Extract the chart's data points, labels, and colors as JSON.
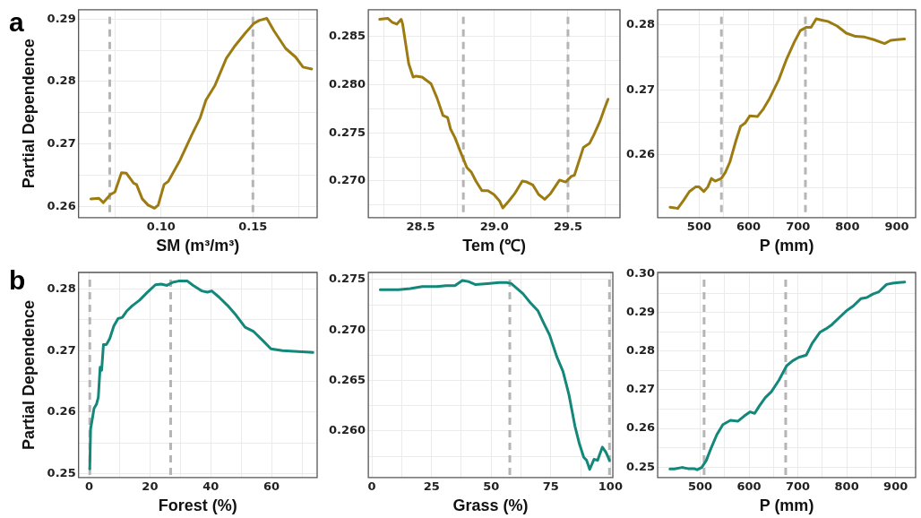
{
  "chart_data": [
    {
      "type": "line",
      "xlabel": "SM (m³/m³)",
      "ylabel": "Partial Dependence",
      "annotations": [
        "a"
      ],
      "color": "#9c7c12",
      "marker": "none",
      "grid": true,
      "x": [
        0.0617,
        0.0661,
        0.0685,
        0.0724,
        0.0748,
        0.0784,
        0.0811,
        0.085,
        0.0866,
        0.0897,
        0.0929,
        0.0964,
        0.0984,
        0.1016,
        0.1039,
        0.1103,
        0.1166,
        0.1213,
        0.1244,
        0.1292,
        0.1355,
        0.1402,
        0.1457,
        0.1505,
        0.1536,
        0.1576,
        0.1615,
        0.1678,
        0.1733,
        0.1773,
        0.182
      ],
      "values": [
        0.2612,
        0.2613,
        0.2606,
        0.2619,
        0.2623,
        0.2654,
        0.2653,
        0.2637,
        0.2635,
        0.2612,
        0.2602,
        0.2597,
        0.2602,
        0.2635,
        0.264,
        0.2674,
        0.2714,
        0.2742,
        0.277,
        0.2793,
        0.2837,
        0.2857,
        0.2877,
        0.2893,
        0.2898,
        0.2901,
        0.2881,
        0.2853,
        0.2839,
        0.2823,
        0.282
      ],
      "xlim": [
        0.055,
        0.185
      ],
      "ylim": [
        0.2582,
        0.2915
      ],
      "xticks": [
        {
          "value": 0.075,
          "label": null
        },
        {
          "value": 0.1,
          "label": "0.10"
        },
        {
          "value": 0.125,
          "label": null
        },
        0.15,
        {
          "value": 0.175,
          "label": null
        }
      ],
      "yticks": [
        0.26,
        {
          "value": 0.265,
          "label": null
        },
        {
          "value": 0.27,
          "label": "0.27"
        },
        {
          "value": 0.275,
          "label": null
        },
        0.28,
        {
          "value": 0.285,
          "label": null
        },
        0.29
      ],
      "ref_lines": [
        {
          "axis": "x",
          "value": 0.072,
          "color": "#b5b5b5",
          "line_style": "dashed"
        },
        {
          "axis": "x",
          "value": 0.15,
          "color": "#b5b5b5",
          "line_style": "dashed"
        }
      ]
    },
    {
      "type": "line",
      "xlabel": "Tem (℃)",
      "color": "#9c7c12",
      "marker": "none",
      "grid": true,
      "x": [
        28.222,
        28.277,
        28.307,
        28.338,
        28.368,
        28.378,
        28.399,
        28.419,
        28.449,
        28.47,
        28.51,
        28.571,
        28.612,
        28.652,
        28.683,
        28.703,
        28.733,
        28.774,
        28.814,
        28.845,
        28.875,
        28.916,
        28.956,
        28.997,
        29.037,
        29.058,
        29.098,
        29.139,
        29.19,
        29.22,
        29.261,
        29.301,
        29.342,
        29.382,
        29.443,
        29.484,
        29.524,
        29.544,
        29.605,
        29.646,
        29.676,
        29.717,
        29.747,
        29.772
      ],
      "values": [
        0.2868,
        0.2869,
        0.2865,
        0.2863,
        0.2868,
        0.2863,
        0.2842,
        0.2822,
        0.2808,
        0.2809,
        0.2808,
        0.2801,
        0.2786,
        0.2768,
        0.2766,
        0.2754,
        0.2745,
        0.2729,
        0.2714,
        0.2709,
        0.27,
        0.269,
        0.269,
        0.2686,
        0.2679,
        0.2672,
        0.2679,
        0.2687,
        0.27,
        0.2699,
        0.2696,
        0.2686,
        0.2681,
        0.2687,
        0.2701,
        0.2699,
        0.2705,
        0.2706,
        0.2735,
        0.2739,
        0.2748,
        0.2762,
        0.2775,
        0.2785
      ],
      "xlim": [
        28.145,
        29.853
      ],
      "ylim": [
        0.2662,
        0.2878
      ],
      "xticks": [
        {
          "value": 28.25,
          "label": null
        },
        28.5,
        {
          "value": 28.75,
          "label": null
        },
        {
          "value": 29,
          "label": "29.0"
        },
        {
          "value": 29.25,
          "label": null
        },
        29.5,
        {
          "value": 29.75,
          "label": null
        }
      ],
      "yticks": [
        {
          "value": 0.2675,
          "label": null
        },
        {
          "value": 0.27,
          "label": "0.270"
        },
        {
          "value": 0.2725,
          "label": null
        },
        0.275,
        {
          "value": 0.2775,
          "label": null
        },
        {
          "value": 0.28,
          "label": "0.280"
        },
        {
          "value": 0.2825,
          "label": null
        },
        0.285
      ],
      "ref_lines": [
        {
          "axis": "x",
          "value": 28.79,
          "color": "#b5b5b5",
          "line_style": "dashed"
        },
        {
          "axis": "x",
          "value": 29.5,
          "color": "#b5b5b5",
          "line_style": "dashed"
        }
      ]
    },
    {
      "type": "line",
      "xlabel": "P (mm)",
      "color": "#9c7c12",
      "marker": "none",
      "grid": true,
      "x": [
        441.1,
        450.4,
        456.6,
        469,
        480.2,
        492.6,
        500,
        509.3,
        517.4,
        524.8,
        532.3,
        544.7,
        552.7,
        562,
        574.4,
        583.7,
        593,
        602.3,
        617.8,
        630.2,
        642.6,
        661.3,
        676.8,
        692.3,
        704.7,
        717.1,
        726.4,
        736.9,
        748.1,
        760.5,
        779.1,
        797.7,
        816.3,
        834.9,
        853.5,
        875.2,
        887.6,
        900,
        915.5
      ],
      "values": [
        0.252,
        0.2519,
        0.2518,
        0.2531,
        0.2544,
        0.2551,
        0.2551,
        0.2544,
        0.2551,
        0.2564,
        0.256,
        0.2564,
        0.2573,
        0.2589,
        0.2622,
        0.2644,
        0.2649,
        0.266,
        0.2659,
        0.2671,
        0.2687,
        0.2716,
        0.2747,
        0.2773,
        0.2791,
        0.2796,
        0.2796,
        0.2809,
        0.2807,
        0.2805,
        0.2798,
        0.2787,
        0.2782,
        0.2781,
        0.2777,
        0.2771,
        0.2776,
        0.2777,
        0.2778
      ],
      "xlim": [
        416,
        938
      ],
      "ylim": [
        0.2504,
        0.2823
      ],
      "xticks": [
        500,
        {
          "value": 550,
          "label": null
        },
        600,
        {
          "value": 650,
          "label": null
        },
        700,
        {
          "value": 750,
          "label": null
        },
        800,
        {
          "value": 850,
          "label": null
        },
        900
      ],
      "yticks": [
        {
          "value": 0.255,
          "label": null
        },
        0.26,
        {
          "value": 0.265,
          "label": null
        },
        0.27,
        {
          "value": 0.275,
          "label": null
        },
        0.28
      ],
      "ref_lines": [
        {
          "axis": "x",
          "value": 545,
          "color": "#b5b5b5",
          "line_style": "dashed"
        },
        {
          "axis": "x",
          "value": 715,
          "color": "#b5b5b5",
          "line_style": "dashed"
        }
      ]
    },
    {
      "type": "line",
      "xlabel": "Forest (%)",
      "ylabel": "Partial Dependence",
      "annotations": [
        "b"
      ],
      "color": "#13877a",
      "marker": "none",
      "grid": true,
      "x": [
        0.19,
        0.47,
        0.95,
        1.6,
        2.4,
        3,
        3.6,
        4.1,
        4.7,
        5.7,
        6.8,
        8.1,
        9.5,
        10.9,
        12.3,
        14.2,
        16.6,
        19,
        21.8,
        23.7,
        25.6,
        27.5,
        29.4,
        32.3,
        34.2,
        37,
        38.9,
        40.3,
        42.7,
        45.6,
        48.4,
        51.3,
        54.1,
        57,
        59.8,
        63.6,
        67.4,
        71.2,
        73.6
      ],
      "values": [
        0.2508,
        0.2573,
        0.2587,
        0.2606,
        0.2613,
        0.2624,
        0.2673,
        0.2668,
        0.271,
        0.271,
        0.272,
        0.274,
        0.2752,
        0.2754,
        0.2764,
        0.2773,
        0.2782,
        0.2794,
        0.2807,
        0.2808,
        0.2806,
        0.2811,
        0.2813,
        0.2813,
        0.2806,
        0.2797,
        0.2795,
        0.2797,
        0.2787,
        0.2773,
        0.2757,
        0.2738,
        0.2731,
        0.2717,
        0.2703,
        0.27,
        0.2699,
        0.2698,
        0.2697
      ],
      "xlim": [
        -3.5,
        75
      ],
      "ylim": [
        0.2494,
        0.2827
      ],
      "xticks": [
        0,
        {
          "value": 10,
          "label": null
        },
        20,
        {
          "value": 30,
          "label": null
        },
        40,
        {
          "value": 50,
          "label": null
        },
        60,
        {
          "value": 70,
          "label": null
        }
      ],
      "yticks": [
        0.25,
        {
          "value": 0.255,
          "label": null
        },
        0.26,
        {
          "value": 0.265,
          "label": null
        },
        0.27,
        {
          "value": 0.275,
          "label": null
        },
        0.28
      ],
      "ref_lines": [
        {
          "axis": "x",
          "value": 0.2,
          "color": "#b5b5b5",
          "line_style": "dashed"
        },
        {
          "axis": "x",
          "value": 26.8,
          "color": "#b5b5b5",
          "line_style": "dashed"
        }
      ]
    },
    {
      "type": "line",
      "xlabel": "Grass (%)",
      "color": "#13877a",
      "marker": "none",
      "grid": true,
      "x": [
        3.5,
        11.2,
        16.1,
        21.1,
        27.3,
        31.1,
        34.8,
        37.9,
        40.4,
        43.5,
        48.4,
        53.4,
        56.5,
        58.4,
        60.9,
        63.3,
        66.4,
        69.6,
        72,
        74.5,
        77.6,
        80.1,
        82.6,
        85.1,
        86.9,
        88.8,
        90,
        91.3,
        93.1,
        94.6,
        96.6,
        98.1,
        99.6
      ],
      "values": [
        0.274,
        0.274,
        0.2741,
        0.2743,
        0.2743,
        0.2744,
        0.2744,
        0.2749,
        0.2748,
        0.2745,
        0.2746,
        0.2747,
        0.2747,
        0.2746,
        0.2741,
        0.2736,
        0.2727,
        0.2719,
        0.2707,
        0.2695,
        0.2673,
        0.2659,
        0.2636,
        0.2605,
        0.2588,
        0.2574,
        0.2571,
        0.2562,
        0.2572,
        0.2571,
        0.2584,
        0.2579,
        0.2571
      ],
      "xlim": [
        -1.5,
        101
      ],
      "ylim": [
        0.2554,
        0.2757
      ],
      "xticks": [
        0,
        {
          "value": 12.5,
          "label": null
        },
        25,
        {
          "value": 37.5,
          "label": null
        },
        50,
        {
          "value": 62.5,
          "label": null
        },
        75,
        {
          "value": 87.5,
          "label": null
        },
        100
      ],
      "yticks": [
        {
          "value": 0.2575,
          "label": null
        },
        {
          "value": 0.26,
          "label": "0.260"
        },
        {
          "value": 0.2625,
          "label": null
        },
        0.265,
        {
          "value": 0.2675,
          "label": null
        },
        {
          "value": 0.27,
          "label": "0.270"
        },
        {
          "value": 0.2725,
          "label": null
        },
        0.275
      ],
      "ref_lines": [
        {
          "axis": "x",
          "value": 57.8,
          "color": "#b5b5b5",
          "line_style": "dashed"
        },
        {
          "axis": "x",
          "value": 99.6,
          "color": "#b5b5b5",
          "line_style": "dashed"
        }
      ]
    },
    {
      "type": "line",
      "xlabel": "P (mm)",
      "color": "#13877a",
      "marker": "none",
      "grid": true,
      "x": [
        438,
        447.3,
        462.8,
        475.2,
        487.6,
        493.8,
        503.1,
        512.4,
        521.7,
        534.1,
        546.5,
        562,
        577.5,
        589.9,
        602.3,
        611.6,
        620.9,
        633.3,
        645.7,
        661.2,
        676.8,
        689.2,
        701.6,
        717.1,
        729.5,
        745,
        757.4,
        769.8,
        785.3,
        800.8,
        813.2,
        828.7,
        841.1,
        853.5,
        865.9,
        881.4,
        893.8,
        906.2,
        918.6
      ],
      "values": [
        0.2495,
        0.2495,
        0.2499,
        0.2496,
        0.2496,
        0.2493,
        0.2499,
        0.2517,
        0.2547,
        0.2584,
        0.261,
        0.2621,
        0.2619,
        0.2632,
        0.2643,
        0.2639,
        0.2658,
        0.268,
        0.2695,
        0.2725,
        0.2762,
        0.2775,
        0.2784,
        0.279,
        0.2821,
        0.2849,
        0.2858,
        0.2869,
        0.2888,
        0.2906,
        0.2917,
        0.2936,
        0.2939,
        0.2948,
        0.2954,
        0.2973,
        0.2976,
        0.2978,
        0.2979
      ],
      "xlim": [
        413,
        941
      ],
      "ylim": [
        0.2473,
        0.3004
      ],
      "xticks": [
        500,
        {
          "value": 550,
          "label": null
        },
        600,
        {
          "value": 650,
          "label": null
        },
        700,
        {
          "value": 750,
          "label": null
        },
        800,
        {
          "value": 850,
          "label": null
        },
        900
      ],
      "yticks": [
        0.25,
        {
          "value": 0.255,
          "label": null
        },
        0.26,
        {
          "value": 0.265,
          "label": null
        },
        0.27,
        {
          "value": 0.275,
          "label": null
        },
        0.28,
        {
          "value": 0.285,
          "label": null
        },
        0.29,
        {
          "value": 0.295,
          "label": null
        },
        {
          "value": 0.3,
          "label": "0.30"
        }
      ],
      "ref_lines": [
        {
          "axis": "x",
          "value": 508,
          "color": "#b5b5b5",
          "line_style": "dashed"
        },
        {
          "axis": "x",
          "value": 675,
          "color": "#b5b5b5",
          "line_style": "dashed"
        }
      ]
    }
  ]
}
